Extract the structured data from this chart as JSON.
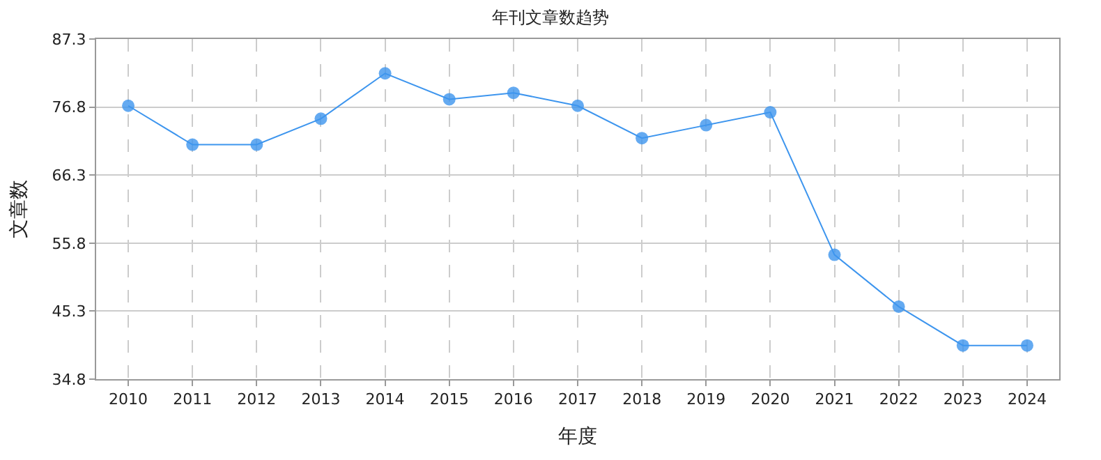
{
  "chart_data": {
    "type": "line",
    "title": "年刊文章数趋势",
    "xlabel": "年度",
    "ylabel": "文章数",
    "categories": [
      "2010",
      "2011",
      "2012",
      "2013",
      "2014",
      "2015",
      "2016",
      "2017",
      "2018",
      "2019",
      "2020",
      "2021",
      "2022",
      "2023",
      "2024"
    ],
    "series": [
      {
        "color": "#3d95ee",
        "values": [
          77,
          71,
          71,
          75,
          82,
          78,
          79,
          77,
          72,
          74,
          76,
          54,
          46,
          40,
          40
        ]
      }
    ],
    "ylim": [
      34.8,
      87.3
    ],
    "yticks": [
      34.8,
      45.3,
      55.8,
      66.3,
      76.8,
      87.3
    ],
    "grid": true,
    "marker": "circle",
    "line_style": "solid",
    "legend": false
  }
}
